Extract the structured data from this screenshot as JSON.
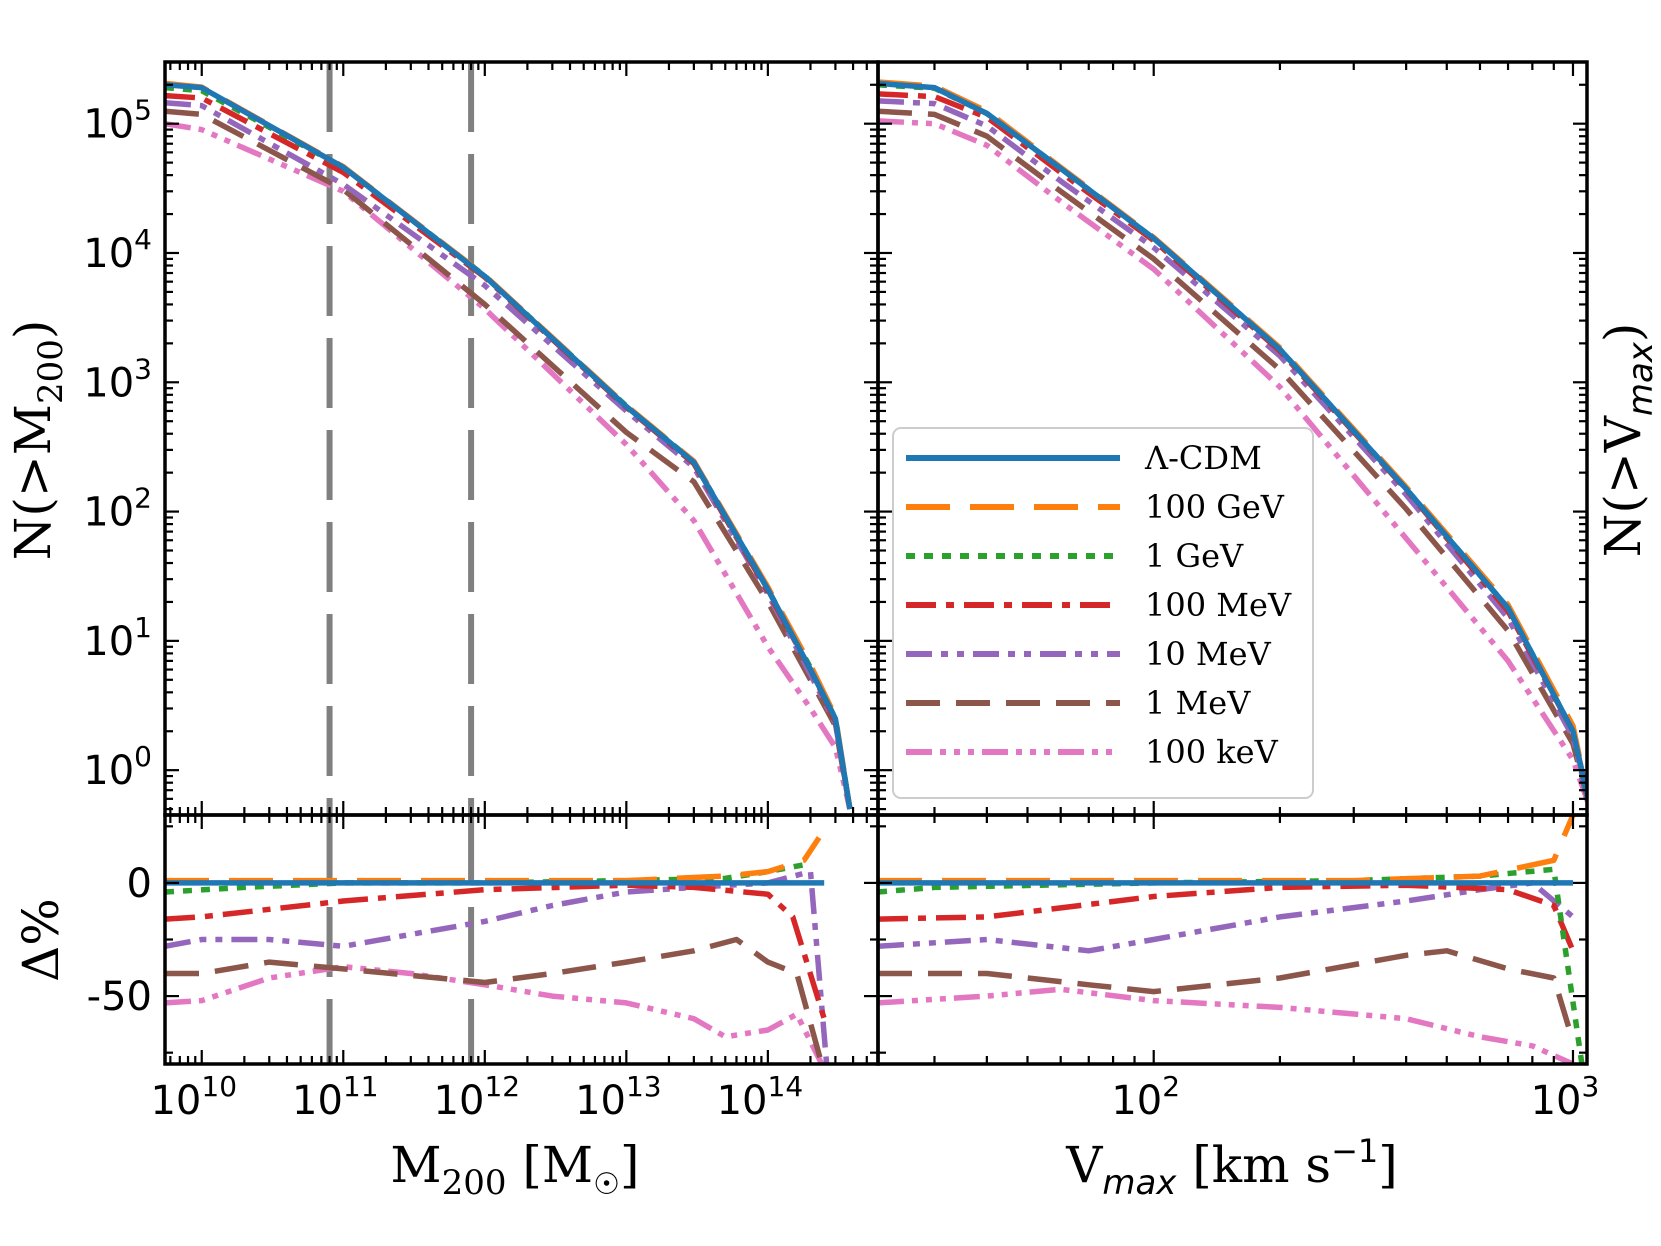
{
  "chart_data": [
    {
      "panel": "top-left",
      "type": "line",
      "xscale": "log",
      "yscale": "log",
      "xlim": [
        5500000000.0,
        600000000000000.0
      ],
      "ylim": [
        0.45,
        300000.0
      ],
      "ylabel": "N(>M200)",
      "x_ticks": [
        {
          "value": 10000000000.0,
          "label": "10",
          "exp": "10"
        },
        {
          "value": 100000000000.0,
          "label": "10",
          "exp": "11"
        },
        {
          "value": 1000000000000.0,
          "label": "10",
          "exp": "12"
        },
        {
          "value": 10000000000000.0,
          "label": "10",
          "exp": "13"
        },
        {
          "value": 100000000000000.0,
          "label": "10",
          "exp": "14"
        }
      ],
      "y_ticks": [
        {
          "value": 1,
          "label": "10",
          "exp": "0"
        },
        {
          "value": 10,
          "label": "10",
          "exp": "1"
        },
        {
          "value": 100,
          "label": "10",
          "exp": "2"
        },
        {
          "value": 1000,
          "label": "10",
          "exp": "3"
        },
        {
          "value": 10000,
          "label": "10",
          "exp": "4"
        },
        {
          "value": 100000,
          "label": "10",
          "exp": "5"
        }
      ],
      "vlines": [
        80000000000.0,
        800000000000.0
      ],
      "series": [
        {
          "name": "Λ-CDM",
          "x": [
            5500000000.0,
            10000000000.0,
            100000000000.0,
            1000000000000.0,
            10000000000000.0,
            30000000000000.0,
            100000000000000.0,
            200000000000000.0,
            300000000000000.0,
            380000000000000.0
          ],
          "y": [
            200000,
            190000,
            46000,
            6600,
            650,
            240,
            25,
            6,
            2.5,
            0.5
          ]
        },
        {
          "name": "100 GeV",
          "x": [
            5500000000.0,
            10000000000.0,
            100000000000.0,
            1000000000000.0,
            10000000000000.0,
            30000000000000.0,
            100000000000000.0,
            200000000000000.0,
            300000000000000.0,
            380000000000000.0
          ],
          "y": [
            205000,
            192000,
            46500,
            6700,
            660,
            245,
            26,
            6.5,
            2.6,
            0.5
          ]
        },
        {
          "name": "1 GeV",
          "x": [
            5500000000.0,
            10000000000.0,
            100000000000.0,
            1000000000000.0,
            10000000000000.0,
            30000000000000.0,
            100000000000000.0,
            200000000000000.0,
            300000000000000.0,
            380000000000000.0
          ],
          "y": [
            190000,
            180000,
            46000,
            6650,
            655,
            242,
            25,
            6.2,
            2.5,
            0.5
          ]
        },
        {
          "name": "100 MeV",
          "x": [
            5500000000.0,
            10000000000.0,
            100000000000.0,
            1000000000000.0,
            10000000000000.0,
            30000000000000.0,
            100000000000000.0,
            200000000000000.0,
            300000000000000.0,
            380000000000000.0
          ],
          "y": [
            165000,
            158000,
            42000,
            6500,
            640,
            235,
            24,
            6,
            2.4,
            0.5
          ]
        },
        {
          "name": "10 MeV",
          "x": [
            5500000000.0,
            10000000000.0,
            100000000000.0,
            1000000000000.0,
            10000000000000.0,
            30000000000000.0,
            100000000000000.0,
            200000000000000.0,
            300000000000000.0,
            380000000000000.0
          ],
          "y": [
            145000,
            138000,
            34000,
            5600,
            600,
            220,
            23,
            5.5,
            2.3,
            0.5
          ]
        },
        {
          "name": "1 MeV",
          "x": [
            5500000000.0,
            10000000000.0,
            100000000000.0,
            1000000000000.0,
            10000000000000.0,
            30000000000000.0,
            100000000000000.0,
            200000000000000.0,
            300000000000000.0,
            380000000000000.0
          ],
          "y": [
            125000,
            118000,
            31000,
            4000,
            410,
            170,
            20,
            5,
            2.2,
            0.5
          ]
        },
        {
          "name": "100 keV",
          "x": [
            5500000000.0,
            10000000000.0,
            100000000000.0,
            1000000000000.0,
            10000000000000.0,
            30000000000000.0,
            100000000000000.0,
            200000000000000.0,
            300000000000000.0,
            380000000000000.0
          ],
          "y": [
            100000,
            90000,
            30000,
            3700,
            330,
            85,
            9,
            3,
            1.5,
            0.5
          ]
        }
      ]
    },
    {
      "panel": "top-right",
      "type": "line",
      "xscale": "log",
      "yscale": "log",
      "xlim": [
        22,
        1080
      ],
      "ylim": [
        0.45,
        300000.0
      ],
      "ylabel": "N(>V_max)",
      "series": [
        {
          "name": "Λ-CDM",
          "x": [
            22,
            30,
            40,
            60,
            100,
            200,
            400,
            700,
            1000,
            1100
          ],
          "y": [
            205000,
            190000,
            120000,
            45000,
            13000,
            1800,
            150,
            18,
            2,
            0.5
          ]
        },
        {
          "name": "100 GeV",
          "x": [
            22,
            30,
            40,
            60,
            100,
            200,
            400,
            700,
            1000,
            1100
          ],
          "y": [
            210000,
            195000,
            125000,
            46000,
            13200,
            1850,
            155,
            19,
            2.2,
            0.5
          ]
        },
        {
          "name": "1 GeV",
          "x": [
            22,
            30,
            40,
            60,
            100,
            200,
            400,
            700,
            1000,
            1100
          ],
          "y": [
            200000,
            188000,
            120000,
            45000,
            13000,
            1800,
            150,
            18,
            2,
            0.5
          ]
        },
        {
          "name": "100 MeV",
          "x": [
            22,
            30,
            40,
            60,
            100,
            200,
            400,
            700,
            1000,
            1100
          ],
          "y": [
            170000,
            162000,
            112000,
            42000,
            12500,
            1750,
            148,
            17,
            2,
            0.5
          ]
        },
        {
          "name": "10 MeV",
          "x": [
            22,
            30,
            40,
            60,
            100,
            200,
            400,
            700,
            1000,
            1100
          ],
          "y": [
            150000,
            143000,
            96000,
            36000,
            11000,
            1600,
            135,
            15,
            1.8,
            0.5
          ]
        },
        {
          "name": "1 MeV",
          "x": [
            22,
            30,
            40,
            60,
            100,
            200,
            400,
            700,
            1000,
            1100
          ],
          "y": [
            125000,
            118000,
            80000,
            30000,
            9000,
            1250,
            105,
            12,
            1.6,
            0.5
          ]
        },
        {
          "name": "100 keV",
          "x": [
            22,
            30,
            40,
            60,
            100,
            200,
            400,
            700,
            1000,
            1100
          ],
          "y": [
            105000,
            100000,
            68000,
            25000,
            7500,
            920,
            62,
            7,
            1.2,
            0.5
          ]
        }
      ],
      "x_ticks": [
        {
          "value": 100,
          "label": "10",
          "exp": "2"
        },
        {
          "value": 1000,
          "label": "10",
          "exp": "3"
        }
      ]
    },
    {
      "panel": "bottom-left",
      "type": "line",
      "xscale": "log",
      "xlim": [
        5500000000.0,
        600000000000000.0
      ],
      "ylim": [
        -80,
        30
      ],
      "xlabel": "M200 [M☉]",
      "ylabel": "Δ%",
      "y_ticks": [
        {
          "value": 0,
          "label": "0"
        },
        {
          "value": -50,
          "label": "-50"
        }
      ],
      "vlines": [
        80000000000.0,
        800000000000.0
      ],
      "series": [
        {
          "name": "Λ-CDM",
          "x": [
            5500000000.0,
            100000000000.0,
            1000000000000.0,
            10000000000000.0,
            100000000000000.0,
            250000000000000.0
          ],
          "y": [
            0,
            0,
            0,
            0,
            0,
            0
          ]
        },
        {
          "name": "100 GeV",
          "x": [
            5500000000.0,
            100000000000.0,
            1000000000000.0,
            10000000000000.0,
            50000000000000.0,
            100000000000000.0,
            180000000000000.0,
            230000000000000.0
          ],
          "y": [
            1,
            1,
            1,
            1,
            3,
            5,
            10,
            20
          ]
        },
        {
          "name": "1 GeV",
          "x": [
            5500000000.0,
            20000000000.0,
            100000000000.0,
            1000000000000.0,
            10000000000000.0,
            50000000000000.0,
            100000000000000.0,
            180000000000000.0
          ],
          "y": [
            -4,
            -2,
            0,
            0,
            1,
            2,
            5,
            8
          ]
        },
        {
          "name": "100 MeV",
          "x": [
            5500000000.0,
            10000000000.0,
            100000000000.0,
            1000000000000.0,
            10000000000000.0,
            30000000000000.0,
            100000000000000.0,
            150000000000000.0,
            250000000000000.0
          ],
          "y": [
            -16,
            -15,
            -8,
            -3,
            -1,
            -2,
            -5,
            -15,
            -60
          ]
        },
        {
          "name": "10 MeV",
          "x": [
            5500000000.0,
            10000000000.0,
            30000000000.0,
            100000000000.0,
            1000000000000.0,
            3000000000000.0,
            10000000000000.0,
            30000000000000.0,
            100000000000000.0,
            200000000000000.0,
            260000000000000.0
          ],
          "y": [
            -28,
            -25,
            -25,
            -28,
            -17,
            -10,
            -4,
            -2,
            0,
            5,
            -80
          ]
        },
        {
          "name": "1 MeV",
          "x": [
            5500000000.0,
            10000000000.0,
            30000000000.0,
            100000000000.0,
            1000000000000.0,
            3000000000000.0,
            10000000000000.0,
            30000000000000.0,
            60000000000000.0,
            100000000000000.0,
            160000000000000.0,
            240000000000000.0
          ],
          "y": [
            -40,
            -40,
            -35,
            -38,
            -44,
            -40,
            -35,
            -30,
            -25,
            -35,
            -40,
            -80
          ]
        },
        {
          "name": "100 keV",
          "x": [
            5500000000.0,
            10000000000.0,
            30000000000.0,
            100000000000.0,
            300000000000.0,
            1000000000000.0,
            3000000000000.0,
            10000000000000.0,
            30000000000000.0,
            50000000000000.0,
            100000000000000.0,
            160000000000000.0,
            240000000000000.0
          ],
          "y": [
            -53,
            -52,
            -42,
            -37,
            -40,
            -45,
            -50,
            -53,
            -60,
            -68,
            -65,
            -58,
            -80
          ]
        }
      ],
      "x_ticks": [
        {
          "value": 10000000000.0,
          "label": "10",
          "exp": "10"
        },
        {
          "value": 100000000000.0,
          "label": "10",
          "exp": "11"
        },
        {
          "value": 1000000000000.0,
          "label": "10",
          "exp": "12"
        },
        {
          "value": 10000000000000.0,
          "label": "10",
          "exp": "13"
        },
        {
          "value": 100000000000000.0,
          "label": "10",
          "exp": "14"
        }
      ]
    },
    {
      "panel": "bottom-right",
      "type": "line",
      "xscale": "log",
      "xlim": [
        22,
        1080
      ],
      "ylim": [
        -80,
        30
      ],
      "xlabel": "V_max [km s^-1]",
      "series": [
        {
          "name": "Λ-CDM",
          "x": [
            22,
            100,
            500,
            1000
          ],
          "y": [
            0,
            0,
            0,
            0
          ]
        },
        {
          "name": "100 GeV",
          "x": [
            22,
            100,
            300,
            600,
            900,
            1000
          ],
          "y": [
            1,
            1,
            1,
            3,
            10,
            30
          ]
        },
        {
          "name": "1 GeV",
          "x": [
            22,
            30,
            100,
            300,
            600,
            900,
            1050
          ],
          "y": [
            -4,
            -2,
            0,
            1,
            3,
            6,
            -80
          ]
        },
        {
          "name": "100 MeV",
          "x": [
            22,
            40,
            100,
            200,
            400,
            700,
            900,
            1000
          ],
          "y": [
            -16,
            -15,
            -6,
            -2,
            -1,
            -3,
            -10,
            -30
          ]
        },
        {
          "name": "10 MeV",
          "x": [
            22,
            40,
            70,
            100,
            200,
            400,
            600,
            800,
            1000
          ],
          "y": [
            -28,
            -25,
            -30,
            -25,
            -15,
            -8,
            -3,
            0,
            -15
          ]
        },
        {
          "name": "1 MeV",
          "x": [
            22,
            40,
            70,
            100,
            200,
            400,
            500,
            700,
            900,
            1000
          ],
          "y": [
            -40,
            -40,
            -45,
            -48,
            -42,
            -32,
            -30,
            -38,
            -42,
            -70
          ]
        },
        {
          "name": "100 keV",
          "x": [
            22,
            40,
            60,
            100,
            200,
            400,
            600,
            800,
            1000
          ],
          "y": [
            -53,
            -50,
            -47,
            -52,
            -55,
            -60,
            -68,
            -72,
            -80
          ]
        }
      ]
    }
  ],
  "legend": [
    {
      "label": "Λ-CDM",
      "color": "#1f77b4",
      "dash": "solid"
    },
    {
      "label": "100 GeV",
      "color": "#ff7f0e",
      "dash": "longdash"
    },
    {
      "label": "1 GeV",
      "color": "#2ca02c",
      "dash": "dotted"
    },
    {
      "label": "100 MeV",
      "color": "#d62728",
      "dash": "dashdot"
    },
    {
      "label": "10 MeV",
      "color": "#9467bd",
      "dash": "dashdotdot"
    },
    {
      "label": "1 MeV",
      "color": "#8c564b",
      "dash": "dashed"
    },
    {
      "label": "100 keV",
      "color": "#e377c2",
      "dash": "dashdotdotdot"
    }
  ],
  "labels": {
    "top_left_ylabel_pre": "N(>M",
    "top_left_ylabel_sub": "200",
    "top_left_ylabel_post": ")",
    "right_ylabel_pre": "N(>V",
    "right_ylabel_sub": "max",
    "right_ylabel_post": ")",
    "bottom_left_ylabel": "Δ%",
    "xlabel_left_pre": "M",
    "xlabel_left_sub": "200",
    "xlabel_left_post": " [M",
    "xlabel_left_sun": "☉",
    "xlabel_left_close": "]",
    "xlabel_right_pre": "V",
    "xlabel_right_sub": "max",
    "xlabel_right_mid": " [km s",
    "xlabel_right_sup": "−1",
    "xlabel_right_close": "]",
    "delta_tick_0": "0",
    "delta_tick_50": "-50"
  },
  "colors": {
    "vline": "#808080"
  }
}
